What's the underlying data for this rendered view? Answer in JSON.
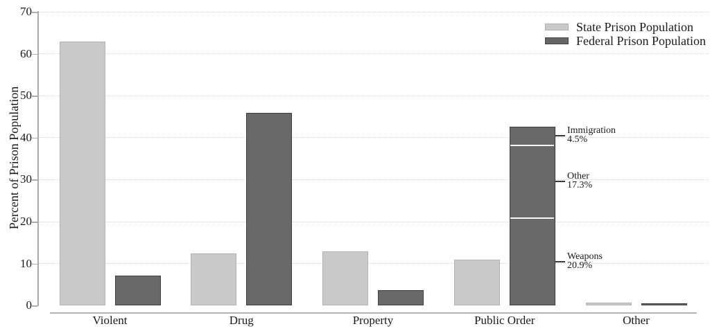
{
  "chart_data": {
    "type": "bar",
    "title": "",
    "xlabel": "",
    "ylabel": "Percent of Prison Population",
    "ylim": [
      0,
      70
    ],
    "yticks": [
      0,
      10,
      20,
      30,
      40,
      50,
      60,
      70
    ],
    "grid": "horizontal dotted gridlines at each ytick except 0",
    "legend_position": "top-right",
    "categories": [
      "Violent",
      "Drug",
      "Property",
      "Public Order",
      "Other"
    ],
    "series": [
      {
        "name": "State Prison Population",
        "color": "#c9c9c9",
        "values": [
          62.9,
          12.4,
          12.9,
          10.9,
          0.7
        ]
      },
      {
        "name": "Federal Prison Population",
        "color": "#696969",
        "values": [
          7.1,
          45.9,
          3.7,
          42.7,
          0.3
        ]
      }
    ],
    "stacked_bar_annotations": {
      "category": "Public Order",
      "series": "Federal Prison Population",
      "segments_bottom_to_top": [
        {
          "label": "Weapons",
          "pct_text": "20.9%",
          "value": 20.9
        },
        {
          "label": "Other",
          "pct_text": "17.3%",
          "value": 17.3
        },
        {
          "label": "Immigration",
          "pct_text": "4.5%",
          "value": 4.5
        }
      ]
    },
    "colors": {
      "state_fill": "#c9c9c9",
      "state_border": "#b2b2b2",
      "federal_fill": "#696969",
      "federal_border": "#3e3e3e",
      "gridline": "#d4d4d4",
      "axis": "#ababab",
      "text": "#1a1a1a",
      "segment_divider": "#fafafa"
    }
  }
}
